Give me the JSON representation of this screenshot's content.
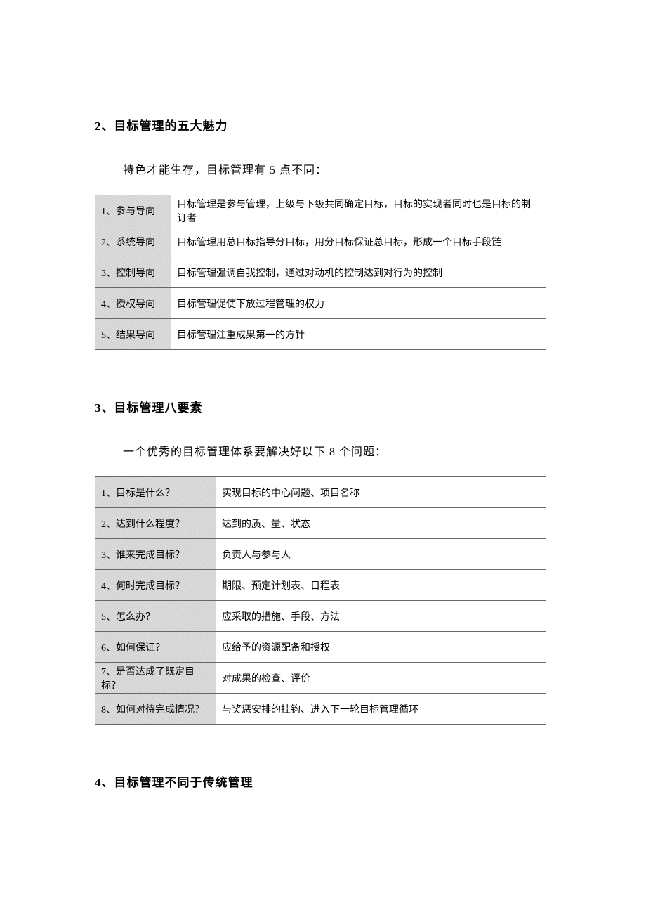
{
  "section2": {
    "heading": "2、目标管理的五大魅力",
    "intro": "特色才能生存，目标管理有 5 点不同：",
    "rows": [
      {
        "label": "1、参与导向",
        "desc": "目标管理是参与管理，上级与下级共同确定目标，目标的实现者同时也是目标的制订者"
      },
      {
        "label": "2、系统导向",
        "desc": "目标管理用总目标指导分目标，用分目标保证总目标，形成一个目标手段链"
      },
      {
        "label": "3、控制导向",
        "desc": "目标管理强调自我控制，通过对动机的控制达到对行为的控制"
      },
      {
        "label": "4、授权导向",
        "desc": "目标管理促使下放过程管理的权力"
      },
      {
        "label": "5、结果导向",
        "desc": "目标管理注重成果第一的方针"
      }
    ]
  },
  "section3": {
    "heading": "3、目标管理八要素",
    "intro": "一个优秀的目标管理体系要解决好以下 8 个问题：",
    "rows": [
      {
        "label": "1、目标是什么？",
        "desc": "实现目标的中心问题、项目名称"
      },
      {
        "label": "2、达到什么程度？",
        "desc": "达到的质、量、状态"
      },
      {
        "label": "3、谁来完成目标？",
        "desc": "负责人与参与人"
      },
      {
        "label": "4、何时完成目标？",
        "desc": "期限、预定计划表、日程表"
      },
      {
        "label": "5、怎么办？",
        "desc": "应采取的措施、手段、方法"
      },
      {
        "label": "6、如何保证？",
        "desc": "应给予的资源配备和授权"
      },
      {
        "label": "7、是否达成了既定目标？",
        "desc": "对成果的检查、评价"
      },
      {
        "label": "8、如何对待完成情况？",
        "desc": "与奖惩安排的挂钩、进入下一轮目标管理循环"
      }
    ]
  },
  "section4": {
    "heading": "4、目标管理不同于传统管理"
  }
}
